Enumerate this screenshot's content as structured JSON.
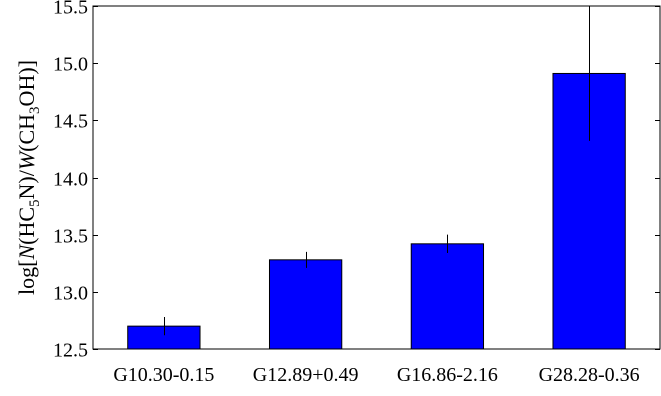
{
  "chart_data": {
    "type": "bar",
    "categories": [
      "G10.30-0.15",
      "G12.89+0.49",
      "G16.86-2.16",
      "G28.28-0.36"
    ],
    "values": [
      12.7,
      13.28,
      13.42,
      14.91
    ],
    "error_upper": [
      12.78,
      13.35,
      13.5,
      15.5
    ],
    "error_lower": [
      12.62,
      13.21,
      13.34,
      14.32
    ],
    "title": "",
    "xlabel": "",
    "ylabel": {
      "prefix": "log[",
      "n_italic": "N",
      "hc": "(HC",
      "hc_sub": "5",
      "hc_end": "N)/",
      "w_italic": "W",
      "ch": "(CH",
      "ch_sub": "3",
      "ch_end": "OH)]"
    },
    "ylim": [
      12.5,
      15.5
    ],
    "yticks": [
      12.5,
      13.0,
      13.5,
      14.0,
      14.5,
      15.0,
      15.5
    ],
    "ytick_labels": [
      "12.5",
      "13.0",
      "13.5",
      "14.0",
      "14.5",
      "15.0",
      "15.5"
    ],
    "grid": false,
    "colors": {
      "bar_fill": "#0000ff",
      "bar_edge": "#000000",
      "axes": "#000000"
    }
  }
}
